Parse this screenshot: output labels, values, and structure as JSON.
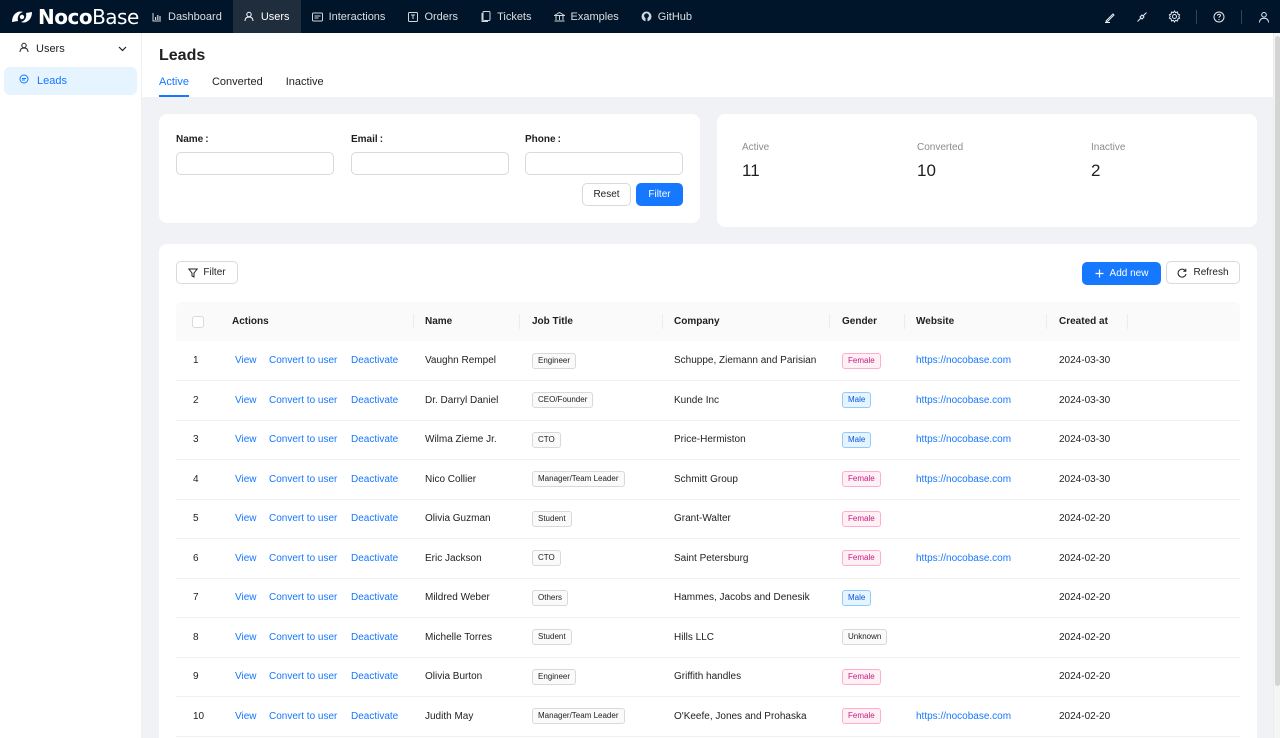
{
  "app": {
    "logo_bold": "Noco",
    "logo_light": "Base",
    "nav": [
      {
        "label": "Dashboard",
        "icon": "bar-chart-icon",
        "active": false
      },
      {
        "label": "Users",
        "icon": "user-icon",
        "active": true
      },
      {
        "label": "Interactions",
        "icon": "interactions-icon",
        "active": false
      },
      {
        "label": "Orders",
        "icon": "orders-icon",
        "active": false
      },
      {
        "label": "Tickets",
        "icon": "tickets-icon",
        "active": false
      },
      {
        "label": "Examples",
        "icon": "bank-icon",
        "active": false
      },
      {
        "label": "GitHub",
        "icon": "github-icon",
        "active": false
      }
    ],
    "right_icons": [
      "highlighter-icon",
      "plugin-icon",
      "settings-icon",
      "help-icon",
      "account-icon"
    ]
  },
  "sidebar": {
    "group_label": "Users",
    "item_label": "Leads"
  },
  "page": {
    "title": "Leads",
    "tabs": [
      {
        "label": "Active",
        "active": true
      },
      {
        "label": "Converted",
        "active": false
      },
      {
        "label": "Inactive",
        "active": false
      }
    ]
  },
  "filter_form": {
    "name_label": "Name",
    "email_label": "Email",
    "phone_label": "Phone",
    "colon": ":",
    "name_value": "",
    "email_value": "",
    "phone_value": "",
    "reset_label": "Reset",
    "filter_label": "Filter"
  },
  "stats": [
    {
      "label": "Active",
      "value": "11"
    },
    {
      "label": "Converted",
      "value": "10"
    },
    {
      "label": "Inactive",
      "value": "2"
    }
  ],
  "toolbar": {
    "filter_label": "Filter",
    "add_new_label": "Add new",
    "refresh_label": "Refresh"
  },
  "table": {
    "headers": {
      "actions": "Actions",
      "name": "Name",
      "job_title": "Job Title",
      "company": "Company",
      "gender": "Gender",
      "website": "Website",
      "created_at": "Created at"
    },
    "action_labels": {
      "view": "View",
      "convert": "Convert to user",
      "deactivate": "Deactivate"
    },
    "rows": [
      {
        "num": "1",
        "name": "Vaughn Rempel",
        "job": "Engineer",
        "company": "Schuppe, Ziemann and Parisian",
        "gender": "Female",
        "website": "https://nocobase.com",
        "created": "2024-03-30"
      },
      {
        "num": "2",
        "name": "Dr. Darryl Daniel",
        "job": "CEO/Founder",
        "company": "Kunde Inc",
        "gender": "Male",
        "website": "https://nocobase.com",
        "created": "2024-03-30"
      },
      {
        "num": "3",
        "name": "Wilma Zieme Jr.",
        "job": "CTO",
        "company": "Price-Hermiston",
        "gender": "Male",
        "website": "https://nocobase.com",
        "created": "2024-03-30"
      },
      {
        "num": "4",
        "name": "Nico Collier",
        "job": "Manager/Team Leader",
        "company": "Schmitt Group",
        "gender": "Female",
        "website": "https://nocobase.com",
        "created": "2024-03-30"
      },
      {
        "num": "5",
        "name": "Olivia Guzman",
        "job": "Student",
        "company": "Grant-Walter",
        "gender": "Female",
        "website": "",
        "created": "2024-02-20"
      },
      {
        "num": "6",
        "name": "Eric Jackson",
        "job": "CTO",
        "company": "Saint Petersburg",
        "gender": "Female",
        "website": "https://nocobase.com",
        "created": "2024-02-20"
      },
      {
        "num": "7",
        "name": "Mildred Weber",
        "job": "Others",
        "company": "Hammes, Jacobs and Denesik",
        "gender": "Male",
        "website": "",
        "created": "2024-02-20"
      },
      {
        "num": "8",
        "name": "Michelle Torres",
        "job": "Student",
        "company": "Hills LLC",
        "gender": "Unknown",
        "website": "",
        "created": "2024-02-20"
      },
      {
        "num": "9",
        "name": "Olivia Burton",
        "job": "Engineer",
        "company": "Griffith handles",
        "gender": "Female",
        "website": "",
        "created": "2024-02-20"
      },
      {
        "num": "10",
        "name": "Judith May",
        "job": "Manager/Team Leader",
        "company": "O'Keefe, Jones and Prohaska",
        "gender": "Female",
        "website": "https://nocobase.com",
        "created": "2024-02-20"
      }
    ]
  },
  "colors": {
    "accent": "#1677ff",
    "topbar": "#001529",
    "female_tag": "#c41d7f",
    "male_tag": "#0958d9"
  }
}
